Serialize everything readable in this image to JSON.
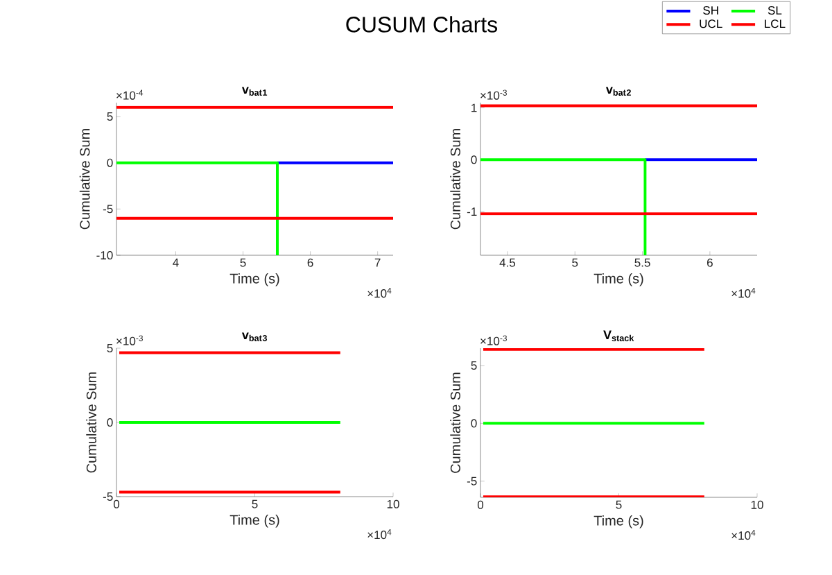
{
  "chart_data": [
    {
      "type": "other",
      "title": "CUSUM Charts"
    },
    {
      "type": "line",
      "title": "v$_{bat}$$_{1}$",
      "xlabel": "Time (s)",
      "ylabel": "Cumulative Sum",
      "legend": "top right",
      "xlim": [
        3.12,
        7.23
      ],
      "ylim": [
        -10,
        6.5
      ],
      "xticks": [
        4,
        5,
        6,
        7
      ],
      "yticks": [
        -10,
        -5,
        0,
        5
      ],
      "annotations": [
        "×10$^{-4}$",
        "×10$^{4}$"
      ],
      "series": [
        {
          "name": "SH",
          "color": "#0000ff",
          "x": [
            5.51,
            7.23
          ],
          "values": [
            0,
            0
          ]
        },
        {
          "name": "SL",
          "color": "#00ff00",
          "x": [
            3.12,
            5.51,
            5.51
          ],
          "values": [
            0,
            0,
            -10
          ]
        },
        {
          "name": "UCL",
          "color": "#ff0000",
          "x": [
            3.12,
            7.23
          ],
          "values": [
            6,
            6
          ]
        },
        {
          "name": "LCL",
          "color": "#ff0000",
          "x": [
            3.12,
            7.23
          ],
          "values": [
            -6,
            -6
          ]
        }
      ]
    },
    {
      "type": "line",
      "title": "v$_{bat}$$_{2}$",
      "xlabel": "Time (s)",
      "ylabel": "Cumulative Sum",
      "xlim": [
        4.3,
        6.35
      ],
      "ylim": [
        -1.84,
        1.1
      ],
      "xticks": [
        4.5,
        5,
        5.5,
        6
      ],
      "yticks": [
        -1,
        0,
        1
      ],
      "annotations": [
        "×10$^{-3}$",
        "×10$^{4}$"
      ],
      "series": [
        {
          "color": "#0000ff",
          "x": [
            5.52,
            6.35
          ],
          "values": [
            0,
            0
          ]
        },
        {
          "color": "#00ff00",
          "x": [
            4.3,
            5.52,
            5.52
          ],
          "values": [
            0,
            0,
            -1.84
          ]
        },
        {
          "color": "#ff0000",
          "x": [
            4.3,
            6.35
          ],
          "values": [
            1.04,
            1.04
          ]
        },
        {
          "color": "#ff0000",
          "x": [
            4.3,
            6.35
          ],
          "values": [
            -1.04,
            -1.04
          ]
        }
      ]
    },
    {
      "type": "line",
      "title": "v$_{bat}$$_{3}$",
      "xlabel": "Time (s)",
      "ylabel": "Cumulative Sum",
      "xlim": [
        0,
        10
      ],
      "ylim": [
        -5,
        5
      ],
      "xticks": [
        0,
        5,
        10
      ],
      "yticks": [
        -5,
        0,
        5
      ],
      "annotations": [
        "×10$^{-3}$",
        "×10$^{4}$"
      ],
      "series": [
        {
          "color": "#00ff00",
          "x": [
            0.1,
            8.09
          ],
          "values": [
            0,
            0
          ]
        },
        {
          "color": "#ff0000",
          "x": [
            0.1,
            8.09
          ],
          "values": [
            4.7,
            4.7
          ]
        },
        {
          "color": "#ff0000",
          "x": [
            0.1,
            8.09
          ],
          "values": [
            -4.7,
            -4.7
          ]
        }
      ]
    },
    {
      "type": "line",
      "title": "V$_{stack}$",
      "xlabel": "Time (s)",
      "ylabel": "Cumulative Sum",
      "xlim": [
        0,
        10
      ],
      "ylim": [
        -6.4,
        6.5
      ],
      "xticks": [
        0,
        5,
        10
      ],
      "yticks": [
        -5,
        0,
        5
      ],
      "annotations": [
        "×10$^{-3}$",
        "×10$^{4}$"
      ],
      "series": [
        {
          "color": "#00ff00",
          "x": [
            0.1,
            8.09
          ],
          "values": [
            0,
            0
          ]
        },
        {
          "color": "#ff0000",
          "x": [
            0.1,
            8.09
          ],
          "values": [
            6.4,
            6.4
          ]
        },
        {
          "color": "#ff0000",
          "x": [
            0.1,
            8.09
          ],
          "values": [
            -6.35,
            -6.35
          ]
        }
      ]
    }
  ]
}
